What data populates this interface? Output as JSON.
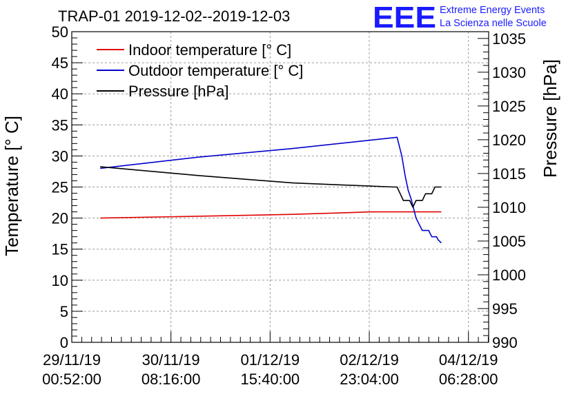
{
  "chart_data": {
    "type": "line",
    "title": "TRAP-01 2019-12-02--2019-12-03",
    "brand": {
      "logo": "EEE",
      "line1": "Extreme Energy Events",
      "line2": "La Scienza nelle Scuole"
    },
    "ylabel_left": "Temperature [° C]",
    "ylabel_right": "Pressure [hPa]",
    "ylim_left": [
      0,
      50
    ],
    "ylim_right": [
      990,
      1036
    ],
    "yticks_left": [
      0,
      5,
      10,
      15,
      20,
      25,
      30,
      35,
      40,
      45,
      50
    ],
    "yticks_right": [
      990,
      995,
      1000,
      1005,
      1010,
      1015,
      1020,
      1025,
      1030,
      1035
    ],
    "xlim": [
      0,
      132
    ],
    "xticks": [
      {
        "x": 0,
        "date": "29/11/19",
        "time": "00:52:00"
      },
      {
        "x": 31.4,
        "date": "30/11/19",
        "time": "08:16:00"
      },
      {
        "x": 62.8,
        "date": "01/12/19",
        "time": "15:40:00"
      },
      {
        "x": 94.2,
        "date": "02/12/19",
        "time": "23:04:00"
      },
      {
        "x": 125.6,
        "date": "04/12/19",
        "time": "06:28:00"
      }
    ],
    "grid": true,
    "legend_position": "top-left",
    "series": [
      {
        "name": "Indoor temperature [° C]",
        "axis": "left",
        "color": "#e00000",
        "points": [
          [
            9,
            20
          ],
          [
            40,
            20.3
          ],
          [
            70,
            20.6
          ],
          [
            95,
            21
          ],
          [
            108,
            21
          ],
          [
            117,
            21
          ]
        ]
      },
      {
        "name": "Outdoor temperature [° C]",
        "axis": "left",
        "color": "#0000cc",
        "points": [
          [
            9,
            28
          ],
          [
            40,
            29.8
          ],
          [
            70,
            31.2
          ],
          [
            103,
            33
          ],
          [
            104.5,
            30
          ],
          [
            105.5,
            27
          ],
          [
            106.5,
            24.5
          ],
          [
            107.5,
            23
          ],
          [
            108,
            22
          ],
          [
            109,
            20
          ],
          [
            110,
            19
          ],
          [
            111,
            18
          ],
          [
            113,
            18
          ],
          [
            114,
            17
          ],
          [
            115.5,
            17
          ],
          [
            116,
            16.5
          ],
          [
            117,
            16
          ]
        ]
      },
      {
        "name": "Pressure [hPa]",
        "axis": "right",
        "color": "#000000",
        "points": [
          [
            9,
            1016
          ],
          [
            40,
            1014.7
          ],
          [
            70,
            1013.6
          ],
          [
            102,
            1013
          ],
          [
            103,
            1013
          ],
          [
            104,
            1012
          ],
          [
            105,
            1011
          ],
          [
            106,
            1011
          ],
          [
            107,
            1011
          ],
          [
            108,
            1010
          ],
          [
            109,
            1011
          ],
          [
            110,
            1011
          ],
          [
            111,
            1011
          ],
          [
            112,
            1012
          ],
          [
            113,
            1012
          ],
          [
            114,
            1012
          ],
          [
            115,
            1013
          ],
          [
            116,
            1013
          ],
          [
            117,
            1013
          ]
        ]
      }
    ]
  }
}
